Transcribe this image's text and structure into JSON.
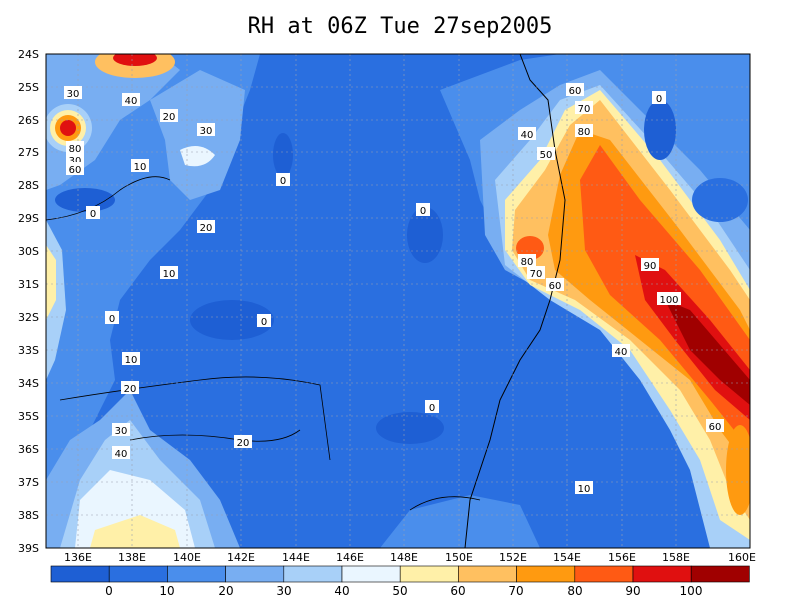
{
  "title": "RH at 06Z Tue 27sep2005",
  "map": {
    "lat_ticks": [
      "24S",
      "25S",
      "26S",
      "27S",
      "28S",
      "29S",
      "30S",
      "31S",
      "32S",
      "33S",
      "34S",
      "35S",
      "36S",
      "37S",
      "38S",
      "39S"
    ],
    "lon_ticks": [
      "136E",
      "138E",
      "140E",
      "142E",
      "144E",
      "146E",
      "148E",
      "150E",
      "152E",
      "154E",
      "156E",
      "158E",
      "160E"
    ],
    "contour_labels": [
      "30",
      "40",
      "20",
      "30",
      "80",
      "60",
      "10",
      "0",
      "0",
      "20",
      "10",
      "0",
      "0",
      "0",
      "30",
      "30",
      "20",
      "10",
      "40",
      "20",
      "0",
      "60",
      "70",
      "80",
      "40",
      "50",
      "0",
      "80",
      "70",
      "60",
      "90",
      "100",
      "40",
      "60",
      "10"
    ]
  },
  "colorbar": {
    "labels": [
      "0",
      "10",
      "20",
      "30",
      "40",
      "50",
      "60",
      "70",
      "80",
      "90",
      "100"
    ],
    "colors": [
      "#1e5fd4",
      "#2a6fe0",
      "#4a8eec",
      "#78aef2",
      "#a8d0f8",
      "#eaf6ff",
      "#fff0a8",
      "#ffc060",
      "#ff9a10",
      "#ff5a14",
      "#e01010",
      "#a00000"
    ]
  }
}
